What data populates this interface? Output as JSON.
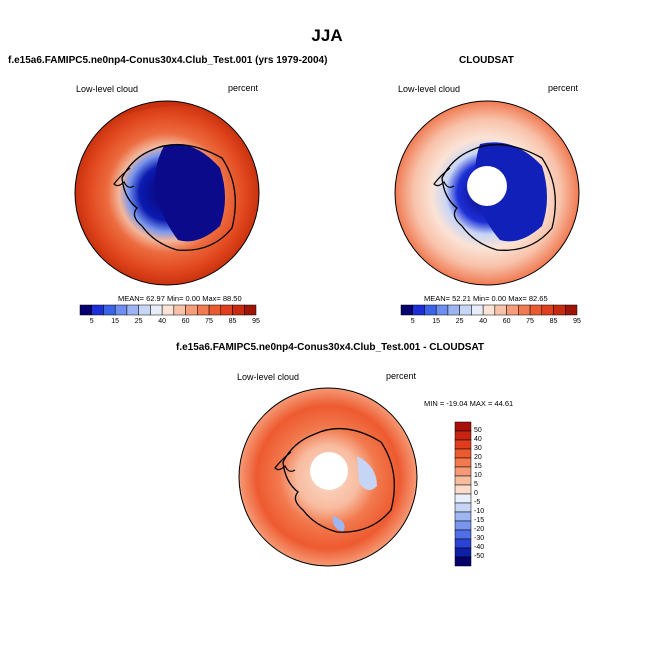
{
  "figure": {
    "title": "JJA"
  },
  "panels": [
    {
      "id": "model",
      "title": "f.e15a6.FAMIPC5.ne0np4-Conus30x4.Club_Test.001 (yrs 1979-2004)",
      "left_label": "Low-level cloud",
      "right_label": "percent",
      "stats": "MEAN=  62.97  Min=   0.00  Max=   88.50"
    },
    {
      "id": "obs",
      "title": "CLOUDSAT",
      "left_label": "Low-level cloud",
      "right_label": "percent",
      "stats": "MEAN=  52.21  Min=   0.00  Max=   82.65"
    },
    {
      "id": "diff",
      "title": "f.e15a6.FAMIPC5.ne0np4-Conus30x4.Club_Test.001 - CLOUDSAT",
      "left_label": "Low-level cloud",
      "right_label": "percent",
      "stats": "MIN = -19.04  MAX =  44.61"
    }
  ],
  "colorbars": {
    "abs_labels": [
      "5",
      "15",
      "25",
      "40",
      "60",
      "75",
      "85",
      "95"
    ],
    "abs_colors": [
      "#08006e",
      "#1c2fd6",
      "#3b63e8",
      "#6e8ff0",
      "#9db4f3",
      "#c8d6f6",
      "#e6ecf8",
      "#fbe3d6",
      "#f8c2aa",
      "#f59c7a",
      "#f07a52",
      "#ea5a30",
      "#df3f1c",
      "#c82a10",
      "#9e1508"
    ],
    "diff_labels": [
      "50",
      "40",
      "30",
      "20",
      "15",
      "10",
      "5",
      "0",
      "-5",
      "-10",
      "-15",
      "-20",
      "-30",
      "-40",
      "-50"
    ],
    "diff_colors": [
      "#a8100a",
      "#c82412",
      "#e03c1e",
      "#ee5a30",
      "#f2794e",
      "#f59a76",
      "#f8bca0",
      "#fbdccb",
      "#e8eefb",
      "#c6d4f6",
      "#9fb6f2",
      "#7a95ed",
      "#4f6fe6",
      "#2a43d4",
      "#0f1fa6",
      "#07006a"
    ]
  }
}
